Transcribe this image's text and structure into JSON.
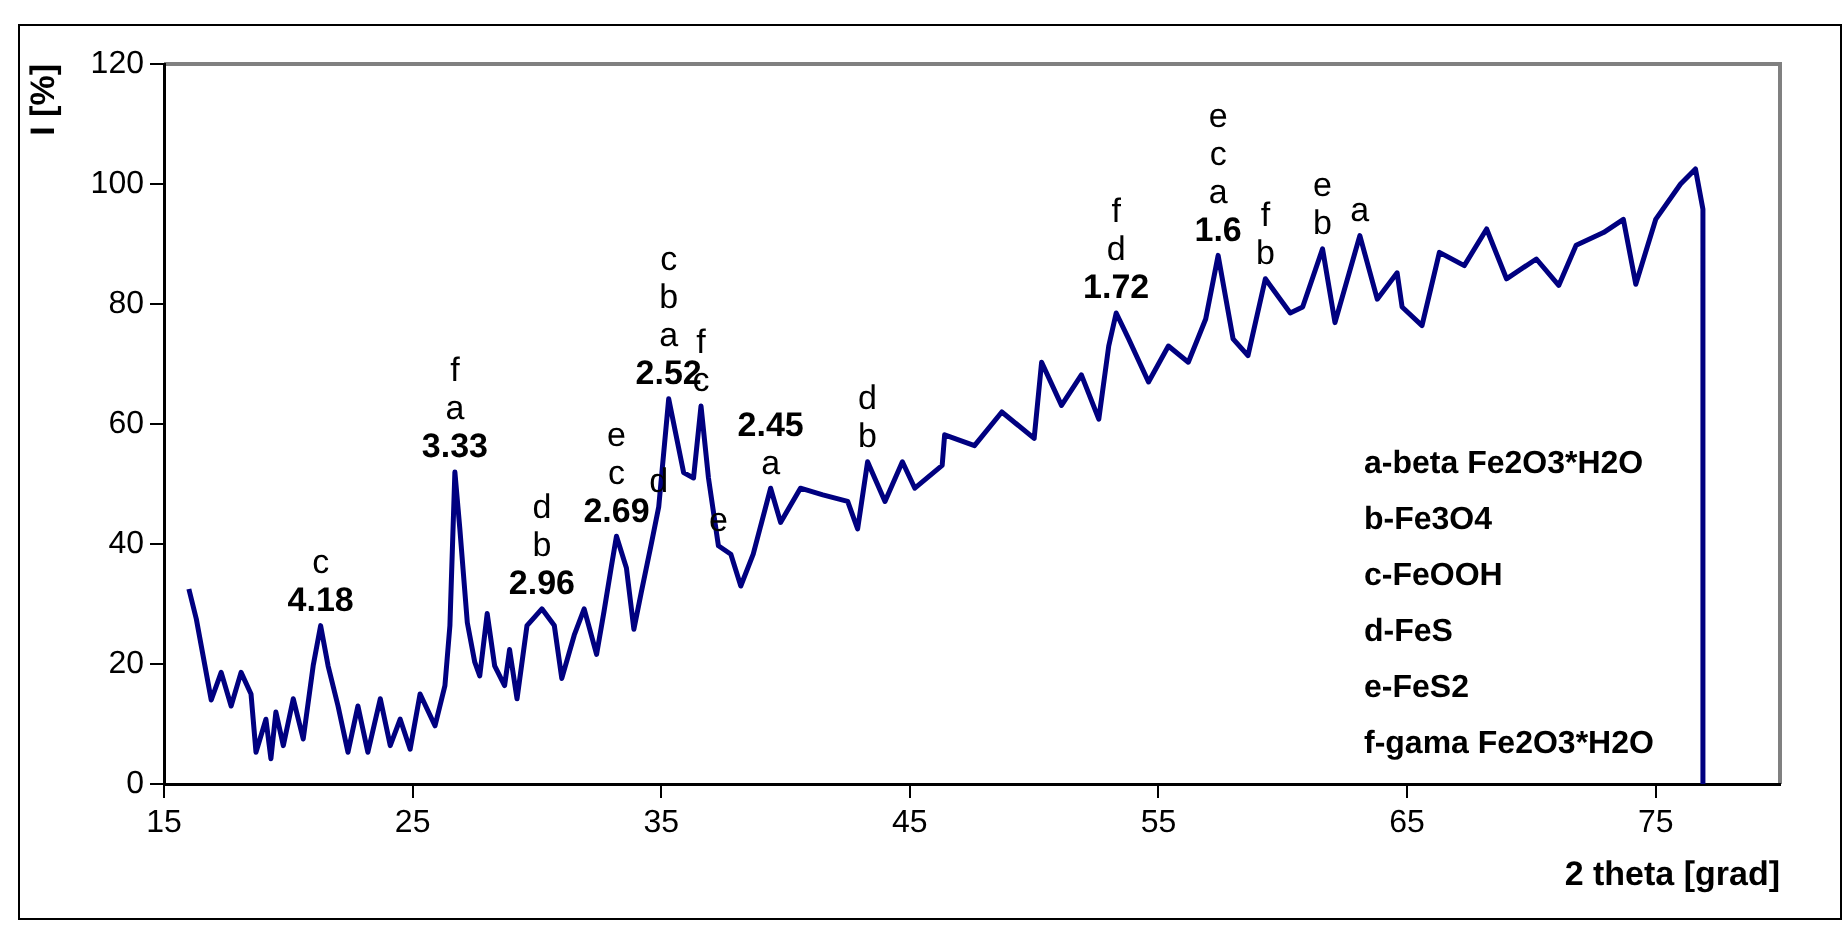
{
  "chart_data": {
    "type": "line",
    "xlabel": "2 theta [grad]",
    "ylabel": "I [%]",
    "xlim": [
      15,
      80
    ],
    "xticks": [
      15,
      25,
      35,
      45,
      55,
      65,
      75
    ],
    "ylim": [
      0,
      120
    ],
    "yticks": [
      0,
      20,
      40,
      60,
      80,
      100,
      120
    ],
    "grid": false,
    "legend": false,
    "marker": "none",
    "line_style": "solid",
    "series": [
      {
        "color": "#000080",
        "x": [
          16.0,
          16.3,
          16.9,
          17.3,
          17.7,
          18.1,
          18.5,
          18.7,
          19.1,
          19.3,
          19.5,
          19.8,
          20.2,
          20.6,
          21.0,
          21.3,
          21.6,
          22.0,
          22.4,
          22.8,
          23.2,
          23.7,
          24.1,
          24.5,
          24.9,
          25.3,
          25.9,
          26.3,
          26.5,
          26.7,
          26.9,
          27.2,
          27.5,
          27.7,
          28.0,
          28.3,
          28.7,
          28.9,
          29.2,
          29.6,
          30.2,
          30.7,
          31.0,
          31.5,
          31.9,
          32.4,
          32.7,
          33.0,
          33.2,
          33.6,
          33.9,
          34.2,
          34.6,
          34.9,
          35.3,
          35.9,
          36.3,
          36.6,
          36.9,
          37.3,
          37.8,
          38.2,
          38.7,
          39.4,
          39.8,
          40.6,
          41.5,
          42.5,
          42.9,
          43.3,
          44.0,
          44.7,
          45.2,
          46.3,
          46.4,
          47.6,
          48.7,
          50.0,
          50.3,
          51.1,
          51.9,
          52.6,
          53.0,
          53.3,
          53.8,
          54.6,
          55.4,
          56.2,
          56.9,
          57.4,
          58.0,
          58.6,
          59.3,
          60.3,
          60.8,
          61.6,
          62.1,
          63.1,
          63.8,
          64.6,
          64.8,
          65.6,
          66.3,
          67.3,
          68.2,
          69.0,
          70.2,
          71.1,
          71.8,
          72.9,
          73.7,
          74.2,
          75.0,
          76.0,
          76.6,
          76.9,
          76.9
        ],
        "values": [
          32.5,
          27.5,
          14,
          18.6,
          13,
          18.6,
          15,
          5.3,
          10.8,
          4.2,
          12,
          6.4,
          14.2,
          7.5,
          19.7,
          26.4,
          19.7,
          13,
          5.3,
          13,
          5.3,
          14.2,
          6.4,
          10.8,
          5.8,
          15,
          9.7,
          16.4,
          26.4,
          52,
          42.5,
          26.9,
          20.3,
          18,
          28.4,
          19.7,
          16.4,
          22.4,
          14.2,
          26.4,
          29.2,
          26.4,
          17.6,
          24.8,
          29.2,
          21.6,
          28.8,
          36.4,
          41.3,
          36,
          25.8,
          32,
          40,
          46.2,
          64.2,
          51.9,
          51,
          63,
          51,
          39.7,
          38.3,
          33,
          38.3,
          49.3,
          43.6,
          49.3,
          48.2,
          47.1,
          42.5,
          53.7,
          47.1,
          53.7,
          49.3,
          53.1,
          58.2,
          56.4,
          62,
          57.6,
          70.3,
          63.1,
          68.2,
          60.8,
          73,
          78.5,
          74.2,
          67,
          73,
          70.3,
          77.5,
          88.1,
          74.2,
          71.4,
          84.2,
          78.5,
          79.5,
          89.2,
          76.9,
          91.4,
          80.8,
          85.2,
          79.5,
          76.4,
          88.6,
          86.4,
          92.5,
          84.2,
          87.5,
          83.1,
          89.8,
          91.9,
          94.1,
          83.3,
          94.1,
          100,
          102.5,
          95.8,
          0
        ]
      }
    ],
    "annotations": [
      {
        "text": "c\n4.18",
        "x": 21.3,
        "y": 26.4
      },
      {
        "text": "f\na\n3.33",
        "x": 26.7,
        "y": 52
      },
      {
        "text": "d\nb\n2.96",
        "x": 30.2,
        "y": 29.2
      },
      {
        "text": "e\nc\n2.69",
        "x": 33.2,
        "y": 41.3
      },
      {
        "text": "d",
        "x": 34.9,
        "y": 46.2
      },
      {
        "text": "c\nb\na\n2.52",
        "x": 35.3,
        "y": 64.2
      },
      {
        "text": "f\nc",
        "x": 36.6,
        "y": 63
      },
      {
        "text": "e",
        "x": 37.3,
        "y": 39.7
      },
      {
        "text": "2.45\na",
        "x": 39.4,
        "y": 49.3
      },
      {
        "text": "d\nb",
        "x": 43.3,
        "y": 53.7
      },
      {
        "text": "f\nd\n1.72",
        "x": 53.3,
        "y": 78.5
      },
      {
        "text": "e\nc\na\n1.6",
        "x": 57.4,
        "y": 88.1
      },
      {
        "text": "f\nb",
        "x": 59.3,
        "y": 84.2
      },
      {
        "text": "e\nb",
        "x": 61.6,
        "y": 89.2
      },
      {
        "text": "a",
        "x": 63.1,
        "y": 91.4
      },
      "a-beta Fe2O3*H2O",
      "b-Fe3O4",
      "c-FeOOH",
      "d-FeS",
      "e-FeS2",
      "f-gama Fe2O3*H2O"
    ]
  }
}
